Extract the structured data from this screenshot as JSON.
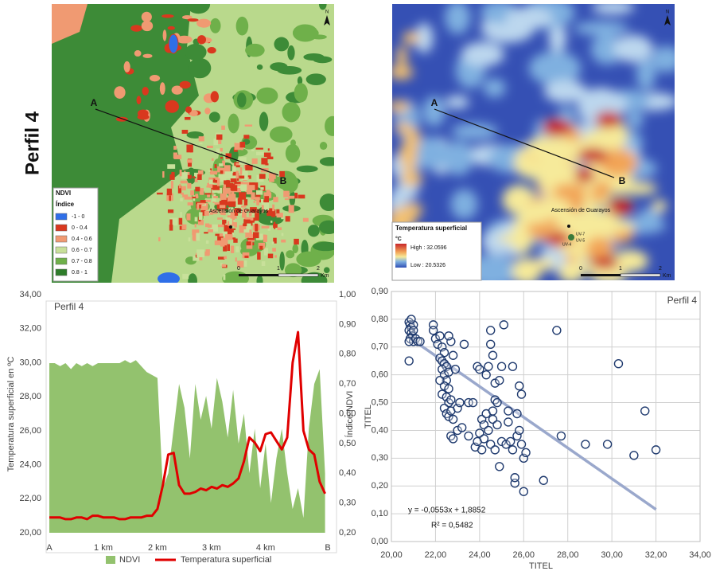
{
  "side_label": "Perfil 4",
  "maps": [
    {
      "title": "NDVI",
      "legend_title": "Índice",
      "north": "N",
      "point_a": "A",
      "point_b": "B",
      "town": "Ascensión de Guarayos",
      "legend": [
        {
          "label": "-1 - 0",
          "color": "#2f6fe8"
        },
        {
          "label": "0 - 0.4",
          "color": "#d9381e"
        },
        {
          "label": "0.4 - 0.6",
          "color": "#f09a72"
        },
        {
          "label": "0.6 - 0.7",
          "color": "#c8e09a"
        },
        {
          "label": "0.7 - 0.8",
          "color": "#6fb04a"
        },
        {
          "label": "0.8 - 1",
          "color": "#2e7d2a"
        }
      ],
      "scale": [
        "0",
        "1",
        "2",
        "Km"
      ]
    },
    {
      "title": "Temperatura superficial",
      "legend_title": "°C",
      "north": "N",
      "point_a": "A",
      "point_b": "B",
      "town": "Ascensión de Guarayos",
      "high": "High : 32.0596",
      "low": "Low : 20.5326",
      "units": [
        "UV-7",
        "UV-4",
        "UV-5"
      ],
      "scale": [
        "0",
        "1",
        "2",
        "Km"
      ]
    }
  ],
  "chart_data": [
    {
      "type": "area-line",
      "title": "Perfil 4",
      "y_label": "Temperatura superficial en ºC",
      "y2_label": "Índice NDVI",
      "xlim": [
        0,
        5.15
      ],
      "xticks": [
        {
          "value": 0,
          "label": "A"
        },
        {
          "value": 1,
          "label": "1 km"
        },
        {
          "value": 2,
          "label": "2 km"
        },
        {
          "value": 3,
          "label": "3 km"
        },
        {
          "value": 4,
          "label": "4 km"
        },
        {
          "value": 5.15,
          "label": "B"
        }
      ],
      "ylim": [
        20,
        34
      ],
      "yticks": [
        {
          "value": 20,
          "label": "20,00"
        },
        {
          "value": 22,
          "label": "22,00"
        },
        {
          "value": 24,
          "label": "24,00"
        },
        {
          "value": 26,
          "label": "26,00"
        },
        {
          "value": 28,
          "label": "28,00"
        },
        {
          "value": 30,
          "label": "30,00"
        },
        {
          "value": 32,
          "label": "32,00"
        },
        {
          "value": 34,
          "label": "34,00"
        }
      ],
      "y2lim": [
        0.2,
        1.0
      ],
      "y2ticks": [
        {
          "value": 0.2,
          "label": "0,20"
        },
        {
          "value": 0.3,
          "label": "0,30"
        },
        {
          "value": 0.4,
          "label": "0,40"
        },
        {
          "value": 0.5,
          "label": "0,50"
        },
        {
          "value": 0.6,
          "label": "0,60"
        },
        {
          "value": 0.7,
          "label": "0,70"
        },
        {
          "value": 0.8,
          "label": "0,80"
        },
        {
          "value": 0.9,
          "label": "0,90"
        },
        {
          "value": 1.0,
          "label": "1,00"
        }
      ],
      "x": [
        0,
        0.1,
        0.2,
        0.3,
        0.4,
        0.5,
        0.6,
        0.7,
        0.8,
        0.9,
        1.0,
        1.1,
        1.2,
        1.3,
        1.4,
        1.5,
        1.6,
        1.7,
        1.8,
        1.9,
        2.0,
        2.1,
        2.2,
        2.3,
        2.4,
        2.5,
        2.6,
        2.7,
        2.8,
        2.9,
        3.0,
        3.1,
        3.2,
        3.3,
        3.4,
        3.5,
        3.6,
        3.7,
        3.8,
        3.9,
        4.0,
        4.1,
        4.2,
        4.3,
        4.4,
        4.5,
        4.6,
        4.7,
        4.8,
        4.9,
        5.0,
        5.1
      ],
      "series": [
        {
          "name": "NDVI",
          "kind": "area",
          "axis": "y2",
          "color": "#93c26e",
          "values": [
            0.77,
            0.77,
            0.76,
            0.77,
            0.75,
            0.77,
            0.76,
            0.77,
            0.76,
            0.77,
            0.77,
            0.77,
            0.77,
            0.77,
            0.78,
            0.77,
            0.78,
            0.76,
            0.74,
            0.73,
            0.72,
            0.35,
            0.4,
            0.55,
            0.7,
            0.62,
            0.45,
            0.7,
            0.58,
            0.66,
            0.55,
            0.72,
            0.64,
            0.52,
            0.68,
            0.5,
            0.6,
            0.4,
            0.55,
            0.35,
            0.5,
            0.3,
            0.45,
            0.55,
            0.4,
            0.28,
            0.35,
            0.25,
            0.55,
            0.7,
            0.75,
            0.4
          ]
        },
        {
          "name": "Temperatura superficial",
          "kind": "line",
          "color": "#e00000",
          "values": [
            20.9,
            20.9,
            20.9,
            20.8,
            20.8,
            20.9,
            20.9,
            20.8,
            21.0,
            21.0,
            20.9,
            20.9,
            20.9,
            20.8,
            20.8,
            20.9,
            20.9,
            20.9,
            21.0,
            21.0,
            21.4,
            22.8,
            24.6,
            24.7,
            22.8,
            22.3,
            22.3,
            22.4,
            22.6,
            22.5,
            22.7,
            22.6,
            22.8,
            22.7,
            22.9,
            23.2,
            24.2,
            25.6,
            25.3,
            24.8,
            25.8,
            25.9,
            25.4,
            24.9,
            25.6,
            30.0,
            31.8,
            26.0,
            24.9,
            24.6,
            23.0,
            22.3
          ]
        }
      ]
    },
    {
      "type": "scatter",
      "title": "Perfil 4",
      "x_label": "TITEL",
      "y_label": "TITEL",
      "grid": true,
      "color": "#1f3a6e",
      "xlim": [
        20,
        34
      ],
      "xticks": [
        {
          "value": 20,
          "label": "20,00"
        },
        {
          "value": 22,
          "label": "22,00"
        },
        {
          "value": 24,
          "label": "24,00"
        },
        {
          "value": 26,
          "label": "26,00"
        },
        {
          "value": 28,
          "label": "28,00"
        },
        {
          "value": 30,
          "label": "30,00"
        },
        {
          "value": 32,
          "label": "32,00"
        },
        {
          "value": 34,
          "label": "34,00"
        }
      ],
      "ylim": [
        0,
        0.9
      ],
      "yticks": [
        {
          "value": 0,
          "label": "0,00"
        },
        {
          "value": 0.1,
          "label": "0,10"
        },
        {
          "value": 0.2,
          "label": "0,20"
        },
        {
          "value": 0.3,
          "label": "0,30"
        },
        {
          "value": 0.4,
          "label": "0,40"
        },
        {
          "value": 0.5,
          "label": "0,50"
        },
        {
          "value": 0.6,
          "label": "0,60"
        },
        {
          "value": 0.7,
          "label": "0,70"
        },
        {
          "value": 0.8,
          "label": "0,80"
        },
        {
          "value": 0.9,
          "label": "0,90"
        }
      ],
      "x": [
        20.8,
        20.85,
        20.9,
        20.8,
        20.9,
        20.95,
        20.85,
        21.0,
        20.8,
        21.0,
        20.9,
        21.1,
        21.2,
        20.8,
        21.3,
        21.0,
        21.9,
        21.9,
        22.0,
        22.1,
        22.2,
        22.3,
        22.4,
        22.2,
        22.3,
        22.4,
        22.5,
        22.3,
        22.4,
        22.6,
        22.5,
        22.4,
        22.6,
        22.3,
        22.5,
        22.6,
        22.7,
        22.4,
        22.5,
        22.6,
        22.7,
        22.8,
        22.7,
        22.8,
        22.6,
        22.9,
        22.2,
        22.7,
        22.8,
        23.0,
        23.2,
        23.0,
        23.1,
        23.3,
        23.5,
        23.5,
        23.7,
        23.8,
        23.9,
        24.0,
        23.9,
        24.0,
        24.1,
        24.1,
        24.2,
        24.2,
        24.3,
        24.3,
        24.4,
        24.4,
        24.5,
        24.5,
        24.5,
        24.6,
        24.6,
        24.6,
        24.7,
        24.7,
        24.7,
        24.8,
        24.8,
        24.9,
        24.9,
        25.0,
        25.0,
        25.1,
        25.2,
        25.3,
        25.3,
        25.4,
        25.5,
        25.5,
        25.6,
        25.6,
        25.7,
        25.7,
        25.8,
        25.8,
        25.9,
        25.9,
        26.0,
        26.0,
        26.1,
        26.9,
        27.5,
        27.7,
        28.8,
        29.8,
        30.3,
        31.0,
        31.5,
        32.0
      ],
      "values": [
        0.79,
        0.78,
        0.77,
        0.76,
        0.75,
        0.74,
        0.73,
        0.72,
        0.72,
        0.78,
        0.8,
        0.73,
        0.72,
        0.65,
        0.72,
        0.76,
        0.78,
        0.76,
        0.73,
        0.71,
        0.74,
        0.7,
        0.68,
        0.66,
        0.65,
        0.64,
        0.63,
        0.62,
        0.6,
        0.61,
        0.58,
        0.56,
        0.55,
        0.53,
        0.52,
        0.5,
        0.51,
        0.48,
        0.46,
        0.45,
        0.47,
        0.44,
        0.72,
        0.67,
        0.74,
        0.62,
        0.58,
        0.38,
        0.37,
        0.4,
        0.41,
        0.48,
        0.5,
        0.71,
        0.38,
        0.5,
        0.5,
        0.34,
        0.63,
        0.62,
        0.36,
        0.39,
        0.44,
        0.33,
        0.37,
        0.42,
        0.6,
        0.46,
        0.4,
        0.63,
        0.71,
        0.76,
        0.35,
        0.47,
        0.44,
        0.67,
        0.51,
        0.57,
        0.33,
        0.42,
        0.5,
        0.27,
        0.58,
        0.36,
        0.63,
        0.78,
        0.35,
        0.47,
        0.43,
        0.36,
        0.63,
        0.33,
        0.21,
        0.23,
        0.38,
        0.46,
        0.4,
        0.56,
        0.53,
        0.35,
        0.18,
        0.3,
        0.32,
        0.22,
        0.76,
        0.38,
        0.35,
        0.35,
        0.64,
        0.31,
        0.47,
        0.33
      ],
      "trendline": {
        "slope": -0.0553,
        "intercept": 1.8852,
        "x": [
          20.8,
          32
        ],
        "color": "#9aa8cc",
        "equation": "y = -0,0553x + 1,8852",
        "r2": "R² = 0,5482"
      }
    }
  ]
}
